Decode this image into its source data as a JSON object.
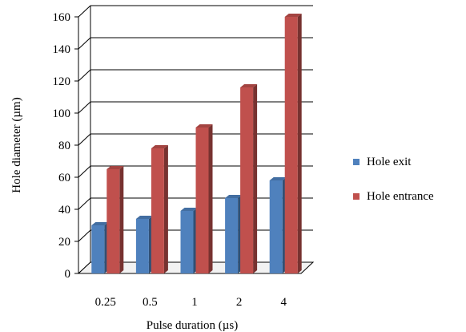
{
  "chart_data": {
    "type": "bar",
    "title": "",
    "xlabel": "Pulse duration  (µs)",
    "ylabel": "Hole diameter  (µm)",
    "categories": [
      "0.25",
      "0.5",
      "1",
      "2",
      "4"
    ],
    "ylim": [
      0,
      160
    ],
    "yticks": [
      0,
      20,
      40,
      60,
      80,
      100,
      120,
      140,
      160
    ],
    "grid": true,
    "three_d": true,
    "legend_position": "right",
    "series": [
      {
        "name": "Hole exit",
        "color": "#4f81bd",
        "values": [
          30,
          34,
          39,
          47,
          58
        ]
      },
      {
        "name": "Hole entrance",
        "color": "#c0504d",
        "values": [
          65,
          78,
          91,
          116,
          160
        ]
      }
    ]
  }
}
